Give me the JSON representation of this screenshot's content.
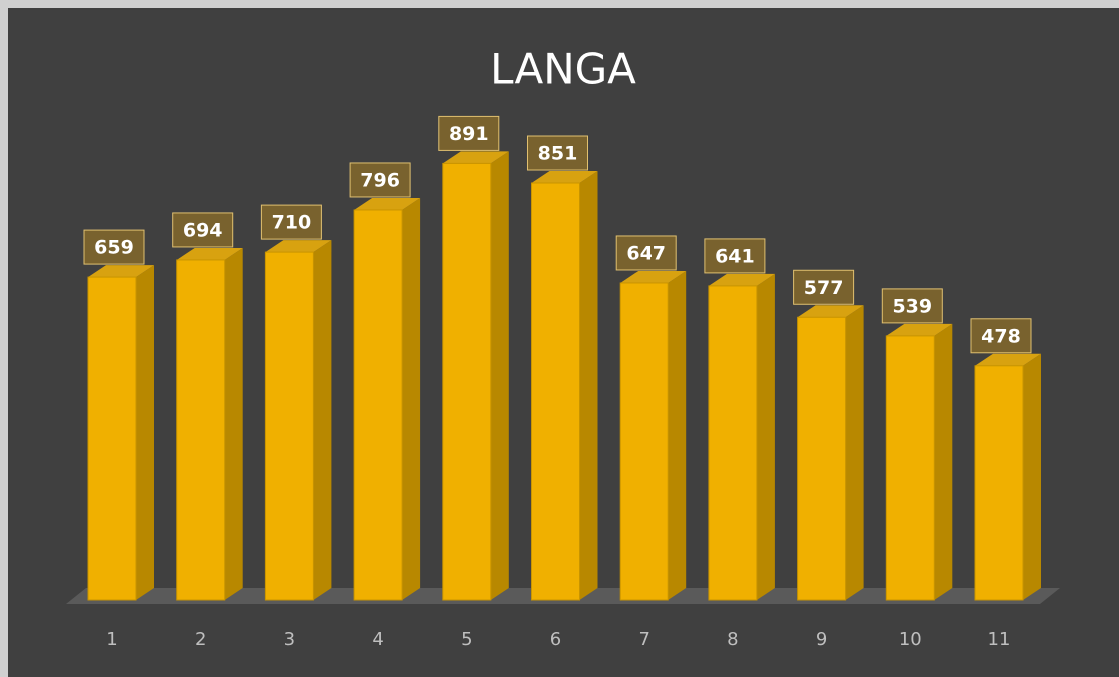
{
  "chart_data": {
    "type": "bar3d",
    "title": "LANGA",
    "categories": [
      "1",
      "2",
      "3",
      "4",
      "5",
      "6",
      "7",
      "8",
      "9",
      "10",
      "11"
    ],
    "values": [
      659,
      694,
      710,
      796,
      891,
      851,
      647,
      641,
      577,
      539,
      478
    ],
    "color": "#f0b000"
  }
}
